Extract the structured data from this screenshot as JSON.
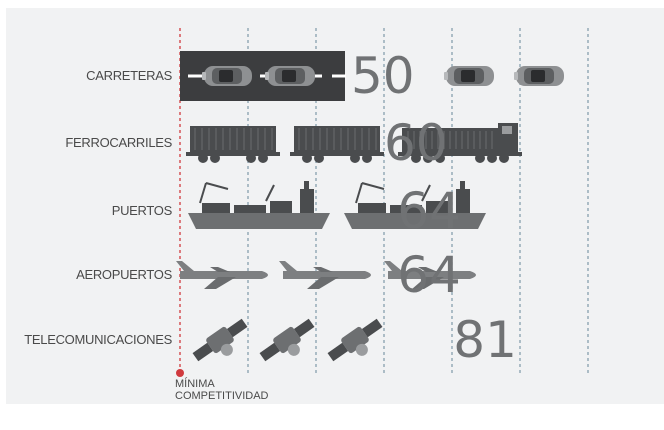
{
  "chart_data": {
    "type": "bar",
    "categories": [
      "CARRETERAS",
      "FERROCARRILES",
      "PUERTOS",
      "AEROPUERTOS",
      "TELECOMUNICACIONES"
    ],
    "values": [
      50,
      60,
      64,
      64,
      81
    ],
    "icons": [
      "car-icon",
      "train-car-icon",
      "ship-icon",
      "airplane-icon",
      "satellite-icon"
    ],
    "reference": {
      "label_line1": "MÍNIMA",
      "label_line2": "COMPETITIVIDAD"
    },
    "gridlines": true,
    "colors": {
      "reference": "#d03a3e",
      "gridline": "#7e9aa8",
      "icon": "#4a4c4e",
      "value_text": "#707274",
      "road": "#3c3d3f"
    }
  }
}
